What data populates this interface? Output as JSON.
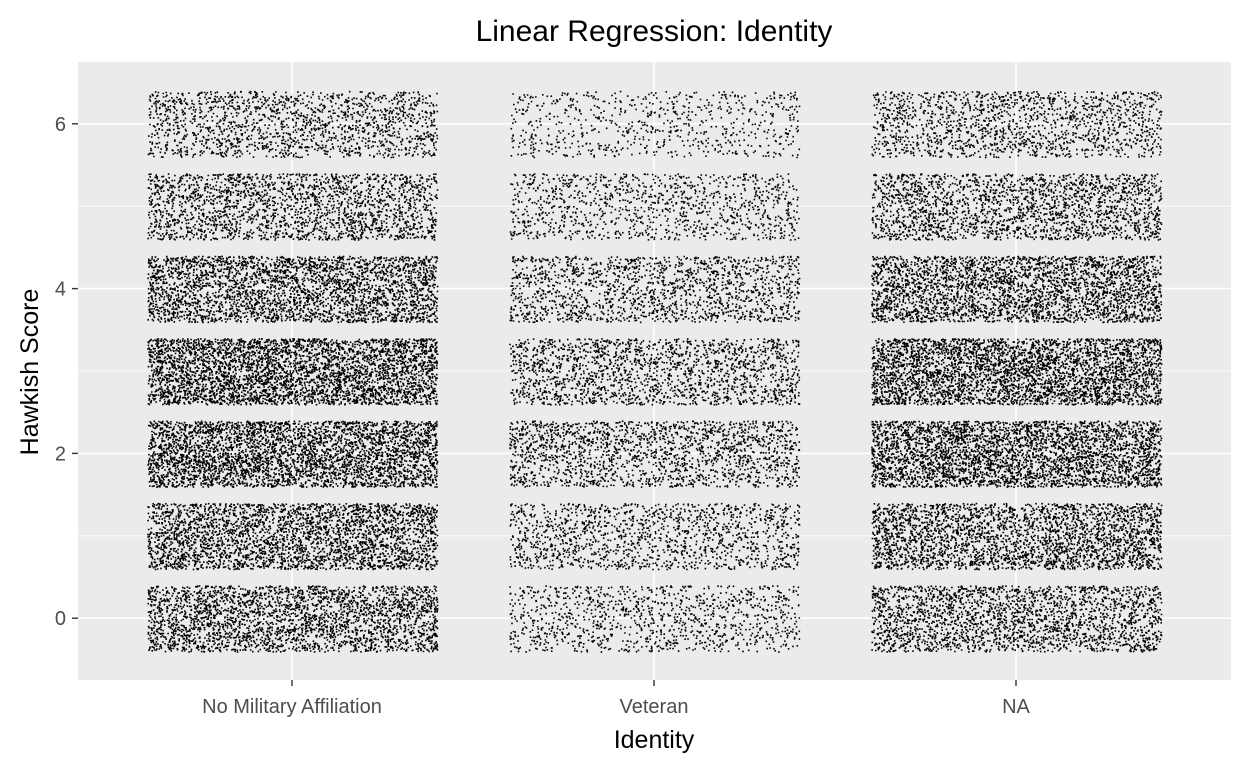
{
  "chart_data": {
    "type": "scatter",
    "title": "Linear Regression: Identity",
    "xlabel": "Identity",
    "ylabel": "Hawkish Score",
    "categories": [
      "No Military Affiliation",
      "Veteran",
      "NA"
    ],
    "y_values": [
      0,
      1,
      2,
      3,
      4,
      5,
      6
    ],
    "y_ticks": [
      0,
      2,
      4,
      6
    ],
    "ylim": [
      -0.75,
      6.75
    ],
    "jitter": {
      "x": 0.4,
      "y": 0.4
    },
    "relative_density": [
      [
        0.55,
        0.62,
        0.75,
        0.8,
        0.62,
        0.42,
        0.32
      ],
      [
        0.22,
        0.28,
        0.36,
        0.36,
        0.32,
        0.22,
        0.14
      ],
      [
        0.46,
        0.56,
        0.72,
        0.75,
        0.6,
        0.42,
        0.3
      ]
    ],
    "point_color": "#000000",
    "panel_background": "#ebebeb",
    "grid": true,
    "legend": "none"
  }
}
